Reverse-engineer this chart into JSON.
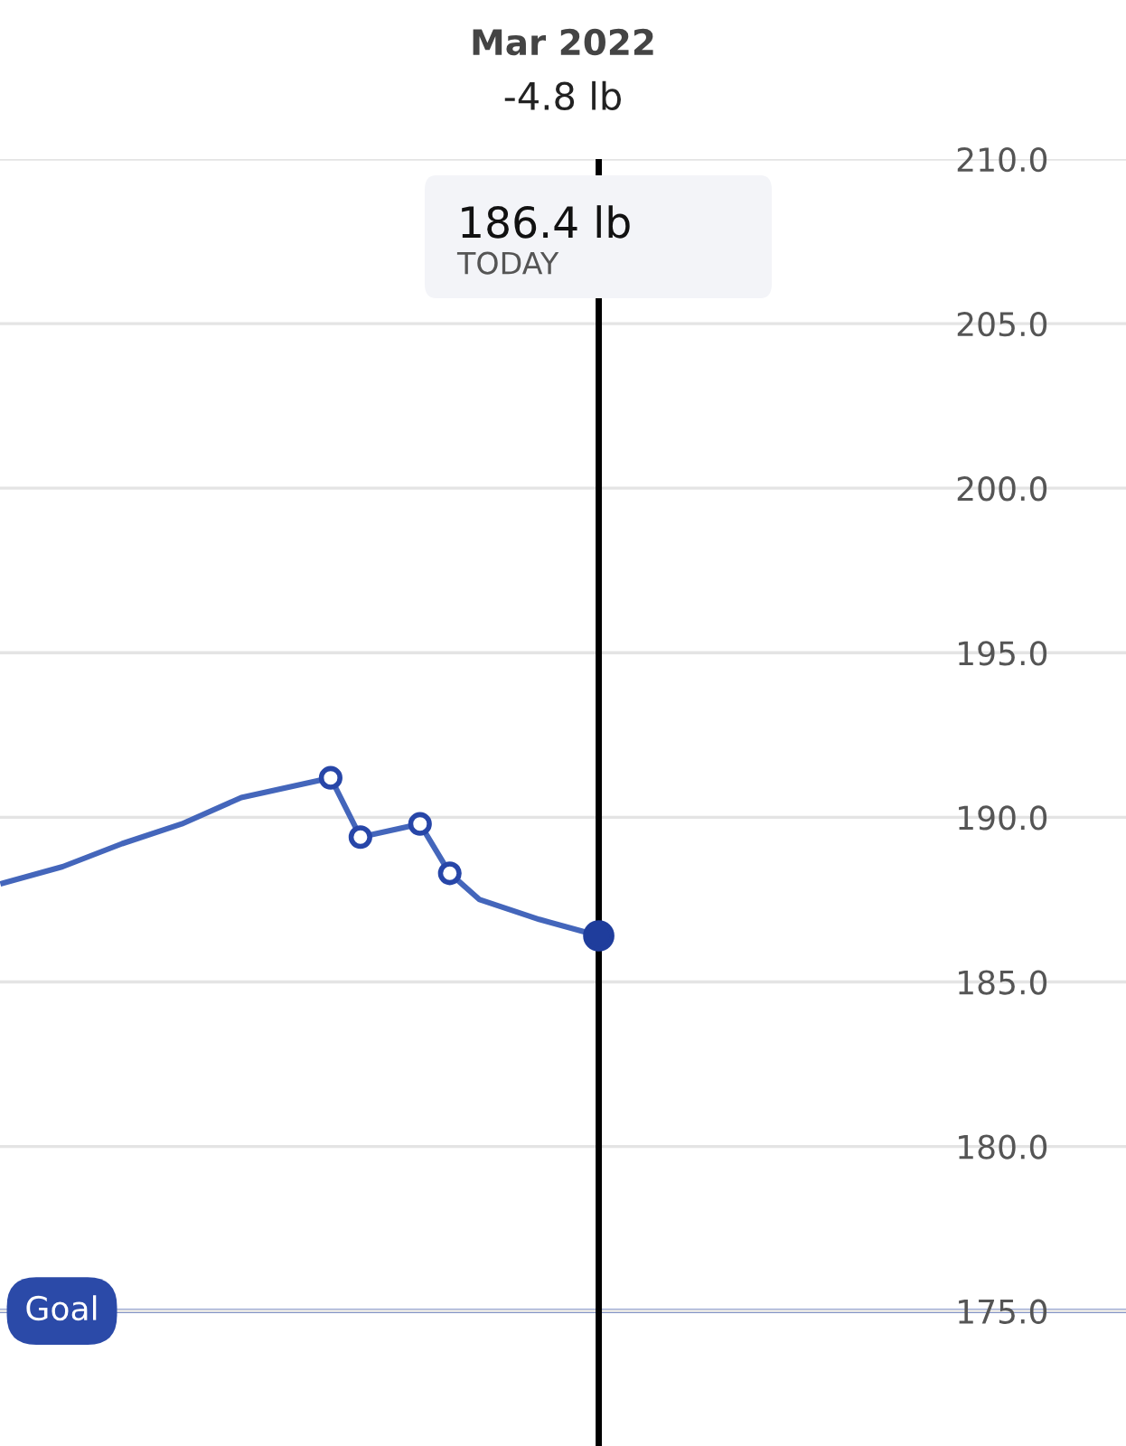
{
  "chart_data": {
    "type": "line",
    "title": "Mar 2022",
    "subtitle": "-4.8 lb",
    "categories": [
      null,
      null,
      null,
      null,
      null,
      null,
      null,
      null,
      null,
      null,
      null,
      null,
      null,
      null,
      null,
      null,
      null,
      null,
      null,
      null,
      null,
      null,
      null,
      null,
      null,
      null,
      null,
      null,
      null,
      null,
      null,
      null,
      null,
      null,
      null,
      null,
      null,
      null
    ],
    "series": [
      {
        "color": "#4466bb",
        "marker": "none",
        "values": [
          188.0,
          null,
          188.5,
          null,
          189.2,
          null,
          189.8,
          null,
          190.6,
          null,
          191.0,
          191.2,
          189.4,
          189.6,
          189.8,
          188.3,
          187.5,
          null,
          186.9,
          null,
          186.4,
          null,
          null,
          null,
          null,
          null,
          null,
          null,
          null,
          null,
          null,
          null,
          null,
          null,
          null,
          null,
          null,
          null
        ]
      },
      {
        "type": "scatter",
        "color": "#2746a8",
        "marker": "circle",
        "values": [
          null,
          null,
          null,
          null,
          null,
          null,
          null,
          null,
          null,
          null,
          null,
          191.2,
          189.4,
          null,
          189.8,
          188.3,
          null,
          null,
          null,
          null,
          null,
          null,
          null,
          null,
          null,
          null,
          null,
          null,
          null,
          null,
          null,
          null,
          null,
          null,
          null,
          null,
          null,
          null
        ]
      },
      {
        "type": "scatter",
        "color": "#1f3d9c",
        "marker": "circle",
        "values": [
          null,
          null,
          null,
          null,
          null,
          null,
          null,
          null,
          null,
          null,
          null,
          null,
          null,
          null,
          null,
          null,
          null,
          null,
          null,
          null,
          186.4,
          null,
          null,
          null,
          null,
          null,
          null,
          null,
          null,
          null,
          null,
          null,
          null,
          null,
          null,
          null,
          null,
          null
        ]
      }
    ],
    "ylim": [
      170.9,
      210.0
    ],
    "yticks": [
      {
        "value": 175,
        "label": "175.0"
      },
      {
        "value": 180,
        "label": "180.0"
      },
      {
        "value": 185,
        "label": "185.0"
      },
      {
        "value": 190,
        "label": "190.0"
      },
      {
        "value": 195,
        "label": "195.0"
      },
      {
        "value": 200,
        "label": "200.0"
      },
      {
        "value": 205,
        "label": "205.0"
      },
      {
        "value": 210,
        "label": "210.0"
      }
    ],
    "tick_labels": "y",
    "grid": "y",
    "legend": false,
    "ref_lines": [
      {
        "axis": "y",
        "value": 175,
        "label": "Goal",
        "color": "#2b4aa8"
      }
    ],
    "annotations": [
      "186.4 lb",
      "TODAY"
    ]
  }
}
